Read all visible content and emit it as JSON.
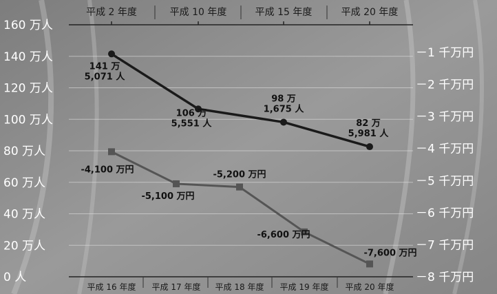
{
  "chart_data": {
    "type": "line",
    "title": "",
    "grid": true,
    "axes": {
      "left": {
        "ticks": [
          "160 万人",
          "140 万人",
          "120 万人",
          "100 万人",
          "80 万人",
          "60 万人",
          "40 万人",
          "20 万人",
          "0 人"
        ],
        "range": [
          0,
          160
        ]
      },
      "right": {
        "ticks": [
          "－1 千万円",
          "－2 千万円",
          "－3 千万円",
          "－4 千万円",
          "－5 千万円",
          "－6 千万円",
          "－7 千万円",
          "－8 千万円"
        ],
        "range": [
          0,
          -80000000
        ]
      },
      "top": {
        "ticks": [
          "平成 2 年度",
          "平成 10 年度",
          "平成 15 年度",
          "平成 20 年度"
        ]
      },
      "bottom": {
        "ticks": [
          "平成 16 年度",
          "平成 17 年度",
          "平成 18 年度",
          "平成 19 年度",
          "平成 20 年度"
        ]
      }
    },
    "series": [
      {
        "axis_x": "top",
        "axis_y": "left",
        "color": "#1a1a1a",
        "marker": "circle",
        "points": [
          {
            "x": "平成 2 年度",
            "y": 1415071,
            "label_lines": [
              "141 万",
              "5,071 人"
            ]
          },
          {
            "x": "平成 10 年度",
            "y": 1065551,
            "label_lines": [
              "106 万",
              "5,551 人"
            ]
          },
          {
            "x": "平成 15 年度",
            "y": 981675,
            "label_lines": [
              "98 万",
              "1,675 人"
            ]
          },
          {
            "x": "平成 20 年度",
            "y": 825981,
            "label_lines": [
              "82 万",
              "5,981 人"
            ]
          }
        ]
      },
      {
        "axis_x": "bottom",
        "axis_y": "right",
        "color": "#555555",
        "marker": "square",
        "points": [
          {
            "x": "平成 16 年度",
            "y": -41000000,
            "label_lines": [
              "-4,100 万円"
            ]
          },
          {
            "x": "平成 17 年度",
            "y": -51000000,
            "label_lines": [
              "-5,100 万円"
            ]
          },
          {
            "x": "平成 18 年度",
            "y": -52000000,
            "label_lines": [
              "-5,200 万円"
            ]
          },
          {
            "x": "平成 19 年度",
            "y": -66000000,
            "label_lines": [
              "-6,600 万円"
            ]
          },
          {
            "x": "平成 20 年度",
            "y": -76000000,
            "label_lines": [
              "-7,600 万円"
            ]
          }
        ]
      }
    ]
  }
}
